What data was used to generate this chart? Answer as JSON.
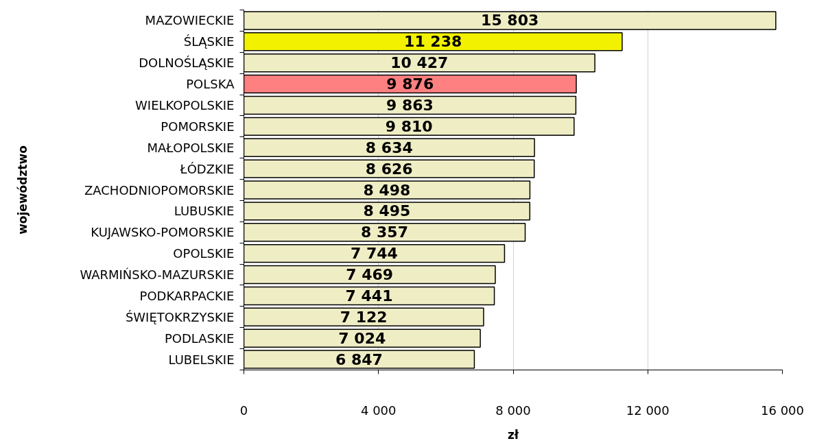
{
  "chart_data": {
    "type": "bar",
    "orientation": "horizontal",
    "xlabel": "zł",
    "ylabel": "województwo",
    "categories": [
      "MAZOWIECKIE",
      "ŚLĄSKIE",
      "DOLNOŚLĄSKIE",
      "POLSKA",
      "WIELKOPOLSKIE",
      "POMORSKIE",
      "MAŁOPOLSKIE",
      "ŁÓDZKIE",
      "ZACHODNIOPOMORSKIE",
      "LUBUSKIE",
      "KUJAWSKO-POMORSKIE",
      "OPOLSKIE",
      "WARMIŃSKO-MAZURSKIE",
      "PODKARPACKIE",
      "ŚWIĘTOKRZYSKIE",
      "PODLASKIE",
      "LUBELSKIE"
    ],
    "values": [
      15803,
      11238,
      10427,
      9876,
      9863,
      9810,
      8634,
      8626,
      8498,
      8495,
      8357,
      7744,
      7469,
      7441,
      7122,
      7024,
      6847
    ],
    "value_labels": [
      "15 803",
      "11 238",
      "10 427",
      "9 876",
      "9 863",
      "9 810",
      "8 634",
      "8 626",
      "8 498",
      "8 495",
      "8 357",
      "7 744",
      "7 469",
      "7 441",
      "7 122",
      "7 024",
      "6 847"
    ],
    "colors": [
      "#efedc4",
      "#f2f200",
      "#efedc4",
      "#ff8080",
      "#efedc4",
      "#efedc4",
      "#efedc4",
      "#efedc4",
      "#efedc4",
      "#efedc4",
      "#efedc4",
      "#efedc4",
      "#efedc4",
      "#efedc4",
      "#efedc4",
      "#efedc4",
      "#efedc4"
    ],
    "xlim": [
      0,
      16000
    ],
    "xticks": [
      0,
      {
        "value": 4000,
        "label": "4 000"
      },
      {
        "value": 8000,
        "label": "8 000"
      },
      {
        "value": 12000,
        "label": "12 000"
      },
      {
        "value": 16000,
        "label": "16 000"
      }
    ],
    "grid": "x"
  }
}
